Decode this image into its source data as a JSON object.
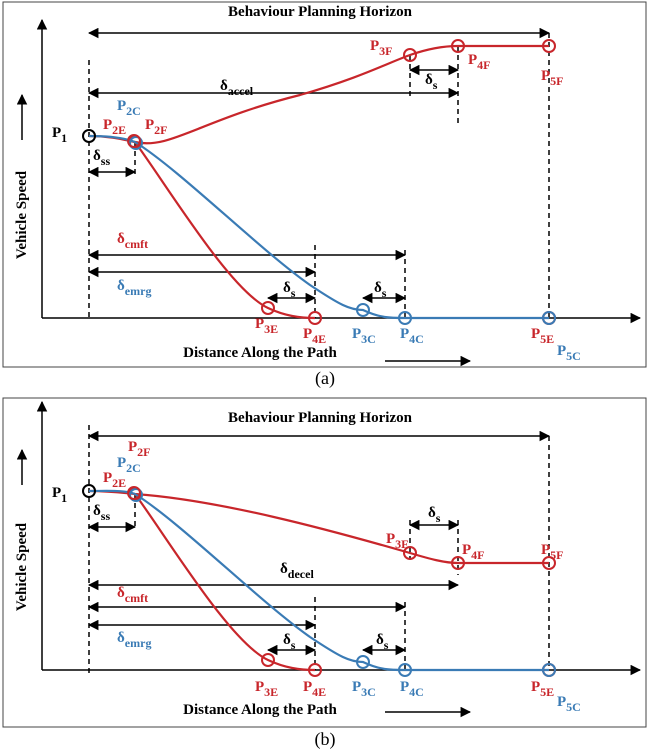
{
  "panels": [
    {
      "horizon": "Behaviour Planning Horizon",
      "y_axis": "Vehicle Speed",
      "x_axis": "Distance Along the Path",
      "caption": "(a)",
      "labels": [
        {
          "main": "P",
          "sub": "1"
        },
        {
          "main": "P",
          "sub": "2C"
        },
        {
          "main": "P",
          "sub": "2E"
        },
        {
          "main": "P",
          "sub": "2F"
        },
        {
          "main": "P",
          "sub": "3F"
        },
        {
          "main": "P",
          "sub": "4F"
        },
        {
          "main": "P",
          "sub": "5F"
        },
        {
          "main": "δ",
          "sub": "accel"
        },
        {
          "main": "δ",
          "sub": "s"
        },
        {
          "main": "δ",
          "sub": "ss"
        },
        {
          "main": "δ",
          "sub": "cmft"
        },
        {
          "main": "δ",
          "sub": "emrg"
        },
        {
          "main": "δ",
          "sub": "s"
        },
        {
          "main": "δ",
          "sub": "s"
        },
        {
          "main": "P",
          "sub": "3E"
        },
        {
          "main": "P",
          "sub": "4E"
        },
        {
          "main": "P",
          "sub": "3C"
        },
        {
          "main": "P",
          "sub": "4C"
        },
        {
          "main": "P",
          "sub": "5E"
        },
        {
          "main": "P",
          "sub": "5C"
        }
      ]
    },
    {
      "horizon": "Behaviour Planning Horizon",
      "y_axis": "Vehicle Speed",
      "x_axis": "Distance Along the Path",
      "caption": "(b)",
      "labels": [
        {
          "main": "P",
          "sub": "1"
        },
        {
          "main": "P",
          "sub": "2C"
        },
        {
          "main": "P",
          "sub": "2E"
        },
        {
          "main": "P",
          "sub": "2F"
        },
        {
          "main": "P",
          "sub": "3F"
        },
        {
          "main": "P",
          "sub": "4F"
        },
        {
          "main": "P",
          "sub": "5F"
        },
        {
          "main": "δ",
          "sub": "decel"
        },
        {
          "main": "δ",
          "sub": "s"
        },
        {
          "main": "δ",
          "sub": "ss"
        },
        {
          "main": "δ",
          "sub": "cmft"
        },
        {
          "main": "δ",
          "sub": "emrg"
        },
        {
          "main": "δ",
          "sub": "s"
        },
        {
          "main": "δ",
          "sub": "s"
        },
        {
          "main": "P",
          "sub": "3E"
        },
        {
          "main": "P",
          "sub": "4E"
        },
        {
          "main": "P",
          "sub": "3C"
        },
        {
          "main": "P",
          "sub": "4C"
        },
        {
          "main": "P",
          "sub": "5E"
        },
        {
          "main": "P",
          "sub": "5C"
        }
      ]
    }
  ]
}
